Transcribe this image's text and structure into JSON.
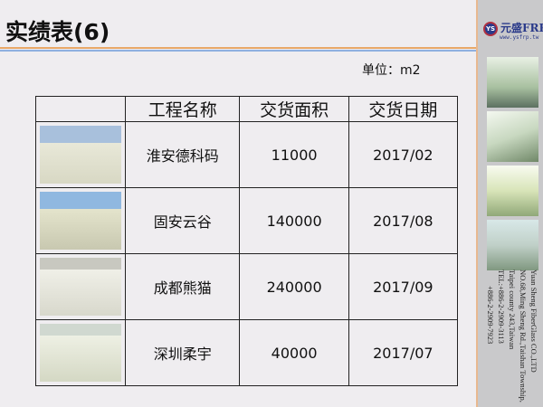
{
  "title": "实绩表(6)",
  "unit": "单位：m2",
  "logo": {
    "badge": "YS",
    "name": "元盛FRP",
    "url": "www.ysfrp.tw"
  },
  "address": [
    "Yuan Sheng FiberGlass CO.,LTD",
    "NO.68,Ming Sheng Rd.,Taishan Township,",
    "Taipei county 243,Taiwan",
    "TEL:+886-2-2909-3113",
    "+886-2-2909-7923"
  ],
  "table": {
    "headers": [
      "",
      "工程名称",
      "交货面积",
      "交货日期"
    ],
    "rows": [
      {
        "name": "淮安德科码",
        "area": "11000",
        "date": "2017/02"
      },
      {
        "name": "固安云谷",
        "area": "140000",
        "date": "2017/08"
      },
      {
        "name": "成都熊猫",
        "area": "240000",
        "date": "2017/09"
      },
      {
        "name": "深圳柔宇",
        "area": "40000",
        "date": "2017/07"
      }
    ]
  },
  "colors": {
    "accent_orange": "#e8a868",
    "accent_blue": "#8fb0e0",
    "side_panel": "#c9c9cb"
  }
}
